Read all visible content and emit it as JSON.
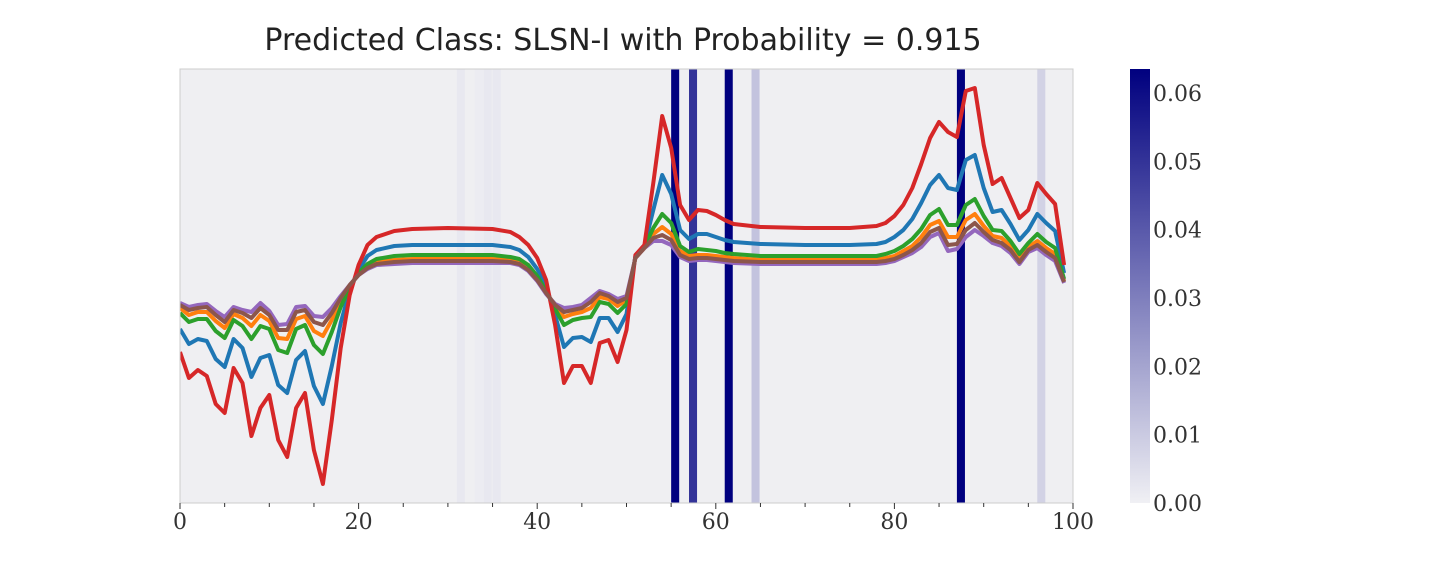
{
  "chart_data": {
    "type": "line",
    "title": "Predicted Class: SLSN-I with Probability = 0.915",
    "xlim": [
      0,
      100
    ],
    "xticks": [
      0,
      20,
      40,
      60,
      80,
      100
    ],
    "xminor_ticks": [
      5,
      10,
      15,
      25,
      30,
      35,
      45,
      50,
      55,
      65,
      70,
      75,
      85,
      90,
      95
    ],
    "ylim": [
      0,
      434
    ],
    "x": [
      0,
      1,
      2,
      3,
      4,
      5,
      6,
      7,
      8,
      9,
      10,
      11,
      12,
      13,
      14,
      15,
      16,
      17,
      18,
      19,
      20,
      21,
      22,
      24,
      26,
      30,
      35,
      37,
      38,
      39,
      40,
      41,
      42,
      43,
      44,
      45,
      46,
      47,
      48,
      49,
      50,
      51,
      52,
      53,
      54,
      55,
      56,
      57,
      58,
      59,
      60,
      61,
      62,
      65,
      70,
      75,
      78,
      79,
      80,
      81,
      82,
      83,
      84,
      85,
      86,
      87,
      88,
      89,
      90,
      91,
      92,
      93,
      94,
      95,
      96,
      97,
      98,
      99
    ],
    "series": [
      {
        "color": "#1f77b4",
        "values": [
          174,
          159,
          164,
          162,
          144,
          136,
          164,
          155,
          126,
          145,
          148,
          118,
          110,
          143,
          152,
          117,
          99,
          137,
          180,
          213,
          233,
          247,
          253,
          257,
          258,
          258,
          258,
          256,
          253,
          246,
          234,
          217,
          188,
          156,
          165,
          166,
          161,
          185,
          185,
          171,
          189,
          247,
          257,
          293,
          328,
          309,
          273,
          264,
          269,
          269,
          266,
          263,
          261,
          259,
          258,
          258,
          259,
          261,
          266,
          273,
          284,
          300,
          318,
          328,
          315,
          313,
          343,
          348,
          315,
          291,
          293,
          279,
          263,
          273,
          289,
          280,
          272,
          230
        ]
      },
      {
        "color": "#ff7f0e",
        "values": [
          195,
          188,
          191,
          191,
          182,
          175,
          189,
          185,
          177,
          188,
          182,
          165,
          164,
          184,
          187,
          172,
          167,
          183,
          201,
          217,
          229,
          237,
          241,
          243,
          244,
          244,
          244,
          243,
          241,
          235,
          225,
          211,
          197,
          186,
          189,
          191,
          195,
          206,
          204,
          197,
          203,
          245,
          255,
          269,
          276,
          269,
          252,
          247,
          248,
          248,
          247,
          246,
          245,
          243,
          243,
          243,
          244,
          245,
          247,
          252,
          257,
          266,
          278,
          282,
          266,
          266,
          283,
          289,
          277,
          267,
          265,
          257,
          244,
          256,
          262,
          255,
          249,
          222
        ]
      },
      {
        "color": "#2ca02c",
        "values": [
          190,
          181,
          184,
          184,
          172,
          165,
          183,
          177,
          164,
          177,
          174,
          153,
          150,
          174,
          178,
          158,
          149,
          171,
          196,
          216,
          230,
          239,
          244,
          247,
          248,
          248,
          248,
          246,
          244,
          238,
          227,
          212,
          194,
          178,
          183,
          185,
          186,
          201,
          199,
          190,
          199,
          246,
          256,
          275,
          289,
          280,
          257,
          251,
          254,
          253,
          252,
          250,
          249,
          247,
          247,
          247,
          247,
          249,
          252,
          257,
          264,
          274,
          288,
          294,
          278,
          278,
          298,
          304,
          287,
          273,
          272,
          262,
          249,
          260,
          269,
          261,
          255,
          224
        ]
      },
      {
        "color": "#d62728",
        "values": [
          151,
          125,
          133,
          127,
          99,
          90,
          135,
          120,
          67,
          95,
          108,
          63,
          46,
          95,
          110,
          53,
          19,
          83,
          155,
          208,
          238,
          258,
          266,
          272,
          274,
          275,
          274,
          271,
          266,
          258,
          245,
          223,
          178,
          120,
          137,
          137,
          120,
          160,
          163,
          141,
          173,
          248,
          258,
          320,
          387,
          355,
          298,
          283,
          293,
          292,
          288,
          283,
          279,
          276,
          275,
          275,
          277,
          280,
          287,
          298,
          315,
          339,
          365,
          381,
          371,
          366,
          412,
          415,
          358,
          319,
          325,
          305,
          285,
          293,
          320,
          309,
          299,
          238
        ]
      },
      {
        "color": "#9467bd",
        "values": [
          200,
          196,
          198,
          199,
          192,
          186,
          196,
          193,
          191,
          200,
          192,
          178,
          179,
          196,
          197,
          187,
          186,
          195,
          207,
          218,
          228,
          234,
          238,
          239,
          240,
          240,
          240,
          240,
          238,
          232,
          222,
          209,
          199,
          195,
          196,
          198,
          205,
          212,
          209,
          204,
          207,
          245,
          255,
          262,
          262,
          258,
          246,
          242,
          243,
          243,
          242,
          241,
          240,
          239,
          239,
          239,
          239,
          240,
          242,
          246,
          250,
          256,
          266,
          270,
          252,
          254,
          266,
          273,
          267,
          260,
          257,
          250,
          239,
          251,
          255,
          248,
          242,
          220
        ]
      },
      {
        "color": "#8c564b",
        "values": [
          198,
          193,
          195,
          196,
          188,
          181,
          193,
          190,
          185,
          195,
          188,
          173,
          173,
          191,
          193,
          181,
          178,
          190,
          205,
          218,
          228,
          235,
          239,
          241,
          242,
          242,
          242,
          241,
          239,
          233,
          223,
          210,
          198,
          191,
          193,
          195,
          201,
          210,
          207,
          201,
          205,
          245,
          255,
          265,
          268,
          263,
          248,
          244,
          245,
          245,
          244,
          243,
          242,
          241,
          241,
          241,
          241,
          242,
          244,
          248,
          253,
          260,
          271,
          275,
          258,
          259,
          273,
          280,
          271,
          263,
          260,
          253,
          241,
          253,
          258,
          251,
          245,
          221
        ]
      }
    ],
    "heatmap": {
      "values": [
        0,
        0,
        0,
        0,
        0,
        0,
        0,
        0,
        0,
        0,
        0,
        0,
        0,
        0,
        0,
        0,
        0,
        0,
        0,
        0,
        0,
        0,
        0,
        0,
        0,
        0,
        0,
        0,
        0,
        0,
        0,
        0.002,
        0,
        0.001,
        0.002,
        0.002,
        0,
        0,
        0,
        0,
        0,
        0,
        0,
        0,
        0,
        0,
        0,
        0,
        0,
        0,
        0,
        0,
        0,
        0,
        0,
        0.0635,
        0,
        0.05,
        0,
        0,
        0,
        0.0635,
        0,
        0,
        0.012,
        0,
        0,
        0,
        0,
        0,
        0,
        0,
        0,
        0,
        0,
        0,
        0,
        0,
        0,
        0,
        0,
        0,
        0,
        0,
        0,
        0,
        0,
        0.0635,
        0,
        0,
        0,
        0,
        0,
        0,
        0,
        0,
        0.008,
        0,
        0,
        0
      ]
    },
    "colorbar": {
      "lim": [
        0,
        0.0635
      ],
      "colors": [
        "#f0f0f4",
        "#00007f"
      ],
      "ticks": [
        {
          "value": 0,
          "label": "0.00"
        },
        {
          "value": 0.01,
          "label": "0.01"
        },
        {
          "value": 0.02,
          "label": "0.02"
        },
        {
          "value": 0.03,
          "label": "0.03"
        },
        {
          "value": 0.04,
          "label": "0.04"
        },
        {
          "value": 0.05,
          "label": "0.05"
        },
        {
          "value": 0.06,
          "label": "0.06"
        }
      ]
    }
  }
}
